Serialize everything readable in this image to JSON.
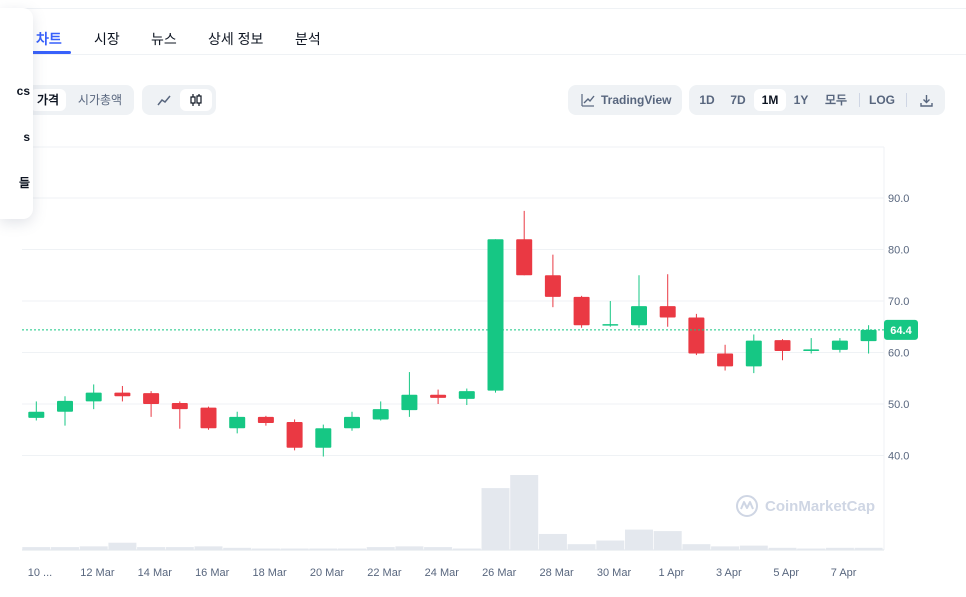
{
  "tabs": [
    {
      "label": "차트",
      "active": true
    },
    {
      "label": "시장",
      "active": false
    },
    {
      "label": "뉴스",
      "active": false
    },
    {
      "label": "상세 정보",
      "active": false
    },
    {
      "label": "분석",
      "active": false
    }
  ],
  "side_menu": {
    "items": [
      "cs",
      "s",
      "들"
    ]
  },
  "toolbar": {
    "type_tabs": [
      "가격",
      "시가총액"
    ],
    "tradingview_label": "TradingView",
    "ranges": [
      "1D",
      "7D",
      "1M",
      "1Y",
      "모두"
    ],
    "selected_range": "1M",
    "log_label": "LOG",
    "chart_style": "candlestick"
  },
  "chart_data": {
    "type": "candlestick",
    "x_labels": [
      "10 ...",
      "12 Mar",
      "14 Mar",
      "16 Mar",
      "18 Mar",
      "20 Mar",
      "22 Mar",
      "24 Mar",
      "26 Mar",
      "28 Mar",
      "30 Mar",
      "1 Apr",
      "3 Apr",
      "5 Apr",
      "7 Apr"
    ],
    "y_ticks": [
      40.0,
      50.0,
      60.0,
      70.0,
      80.0,
      90.0
    ],
    "y_tick_labels": [
      "40.0",
      "50.0",
      "60.0",
      "70.0",
      "80.0",
      "90.0"
    ],
    "ylim": [
      30,
      100
    ],
    "current_price": 64.4,
    "current_price_label": "64.4",
    "candles": [
      {
        "o": 47.3,
        "h": 50.5,
        "l": 46.8,
        "c": 48.5
      },
      {
        "o": 48.5,
        "h": 51.5,
        "l": 45.8,
        "c": 50.6
      },
      {
        "o": 50.5,
        "h": 53.8,
        "l": 49.0,
        "c": 52.2
      },
      {
        "o": 52.2,
        "h": 53.5,
        "l": 50.5,
        "c": 51.5
      },
      {
        "o": 52.1,
        "h": 52.5,
        "l": 47.5,
        "c": 50.0
      },
      {
        "o": 50.2,
        "h": 50.5,
        "l": 45.2,
        "c": 49.0
      },
      {
        "o": 49.3,
        "h": 49.5,
        "l": 45.0,
        "c": 45.3
      },
      {
        "o": 45.3,
        "h": 48.5,
        "l": 44.3,
        "c": 47.5
      },
      {
        "o": 47.5,
        "h": 47.7,
        "l": 45.8,
        "c": 46.3
      },
      {
        "o": 46.5,
        "h": 47.0,
        "l": 41.0,
        "c": 41.5
      },
      {
        "o": 41.5,
        "h": 46.0,
        "l": 39.8,
        "c": 45.3
      },
      {
        "o": 45.3,
        "h": 48.5,
        "l": 44.8,
        "c": 47.5
      },
      {
        "o": 47.0,
        "h": 50.5,
        "l": 46.8,
        "c": 49.0
      },
      {
        "o": 48.8,
        "h": 56.2,
        "l": 47.5,
        "c": 51.8
      },
      {
        "o": 51.8,
        "h": 52.8,
        "l": 50.0,
        "c": 51.2
      },
      {
        "o": 51.0,
        "h": 53.0,
        "l": 49.8,
        "c": 52.5
      },
      {
        "o": 52.6,
        "h": 82.0,
        "l": 52.2,
        "c": 82.0
      },
      {
        "o": 82.0,
        "h": 87.5,
        "l": 75.0,
        "c": 75.0
      },
      {
        "o": 75.0,
        "h": 79.0,
        "l": 68.8,
        "c": 70.8
      },
      {
        "o": 70.8,
        "h": 71.0,
        "l": 64.8,
        "c": 65.3
      },
      {
        "o": 65.3,
        "h": 70.0,
        "l": 65.0,
        "c": 65.5
      },
      {
        "o": 65.3,
        "h": 75.0,
        "l": 64.8,
        "c": 69.0
      },
      {
        "o": 69.0,
        "h": 75.2,
        "l": 65.0,
        "c": 66.8
      },
      {
        "o": 66.8,
        "h": 67.5,
        "l": 59.5,
        "c": 59.8
      },
      {
        "o": 59.8,
        "h": 61.5,
        "l": 56.5,
        "c": 57.3
      },
      {
        "o": 57.3,
        "h": 63.5,
        "l": 56.0,
        "c": 62.3
      },
      {
        "o": 62.4,
        "h": 62.6,
        "l": 58.5,
        "c": 60.3
      },
      {
        "o": 60.3,
        "h": 62.8,
        "l": 59.8,
        "c": 60.6
      },
      {
        "o": 60.5,
        "h": 62.8,
        "l": 60.0,
        "c": 62.3
      },
      {
        "o": 62.2,
        "h": 65.3,
        "l": 59.8,
        "c": 64.4
      }
    ],
    "volumes": [
      0.4,
      0.4,
      0.5,
      1.0,
      0.4,
      0.4,
      0.5,
      0.3,
      0.2,
      0.2,
      0.2,
      0.2,
      0.4,
      0.5,
      0.4,
      0.2,
      8.5,
      10.3,
      2.2,
      0.8,
      1.3,
      2.8,
      2.6,
      0.8,
      0.5,
      0.6,
      0.3,
      0.2,
      0.3,
      0.3
    ],
    "colors": {
      "up": "#16c784",
      "down": "#ea3943",
      "grid": "#eff2f5",
      "volume": "#e4e8ee",
      "price_line": "#16c784"
    },
    "watermark": "CoinMarketCap"
  }
}
